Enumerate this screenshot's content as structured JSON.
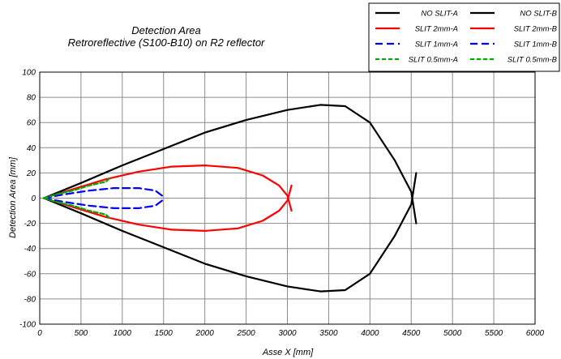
{
  "chart_data": {
    "type": "line",
    "title_line1": "Detection Area",
    "title_line2": "Retroreflective (S100-B10) on R2 reflector",
    "xlabel": "Asse X [mm]",
    "ylabel": "Detection Area [mm]",
    "xlim": [
      0,
      6000
    ],
    "ylim": [
      -100,
      100
    ],
    "x_ticks": [
      "0",
      "500",
      "1000",
      "1500",
      "2000",
      "2500",
      "3000",
      "3500",
      "4000",
      "4500",
      "5000",
      "5500",
      "6000"
    ],
    "y_ticks": [
      "100",
      "80",
      "60",
      "40",
      "20",
      "0",
      "-20",
      "-40",
      "-60",
      "-80",
      "-100"
    ],
    "grid": true,
    "legend_position": "top-right",
    "series": [
      {
        "name": "NO SLIT-A",
        "color": "#000000",
        "dash": "solid",
        "x": [
          50,
          500,
          1000,
          1500,
          2000,
          2500,
          3000,
          3400,
          3700,
          4000,
          4300,
          4500,
          4560
        ],
        "y": [
          0,
          12,
          26,
          39,
          52,
          62,
          70,
          74,
          73,
          60,
          30,
          5,
          -20
        ]
      },
      {
        "name": "NO SLIT-B",
        "color": "#000000",
        "dash": "solid",
        "x": [
          50,
          500,
          1000,
          1500,
          2000,
          2500,
          3000,
          3400,
          3700,
          4000,
          4300,
          4500,
          4560
        ],
        "y": [
          0,
          -12,
          -26,
          -39,
          -52,
          -62,
          -70,
          -74,
          -73,
          -60,
          -30,
          -5,
          20
        ]
      },
      {
        "name": "SLIT 2mm-A",
        "color": "#ff0000",
        "dash": "solid",
        "x": [
          50,
          400,
          800,
          1200,
          1600,
          2000,
          2400,
          2700,
          2900,
          3000,
          3050
        ],
        "y": [
          0,
          7,
          15,
          21,
          25,
          26,
          24,
          18,
          10,
          2,
          -10
        ]
      },
      {
        "name": "SLIT 2mm-B",
        "color": "#ff0000",
        "dash": "solid",
        "x": [
          50,
          400,
          800,
          1200,
          1600,
          2000,
          2400,
          2700,
          2900,
          3000,
          3050
        ],
        "y": [
          0,
          -7,
          -15,
          -21,
          -25,
          -26,
          -24,
          -18,
          -10,
          -2,
          10
        ]
      },
      {
        "name": "SLIT 1mm-A",
        "color": "#0000ff",
        "dash": "dash",
        "x": [
          50,
          300,
          600,
          900,
          1200,
          1400,
          1500
        ],
        "y": [
          0,
          3,
          6,
          8,
          8,
          6,
          1
        ]
      },
      {
        "name": "SLIT 1mm-B",
        "color": "#0000ff",
        "dash": "dash",
        "x": [
          50,
          300,
          600,
          900,
          1200,
          1400,
          1500
        ],
        "y": [
          0,
          -3,
          -6,
          -8,
          -8,
          -6,
          -1
        ]
      },
      {
        "name": "SLIT 0.5mm-A",
        "color": "#00aa00",
        "dash": "short-dash",
        "x": [
          50,
          200,
          400,
          600,
          800,
          850
        ],
        "y": [
          0,
          3,
          6,
          10,
          13,
          16
        ]
      },
      {
        "name": "SLIT 0.5mm-B",
        "color": "#00aa00",
        "dash": "short-dash",
        "x": [
          50,
          200,
          400,
          600,
          800,
          850
        ],
        "y": [
          0,
          -3,
          -6,
          -10,
          -13,
          -16
        ]
      }
    ]
  }
}
